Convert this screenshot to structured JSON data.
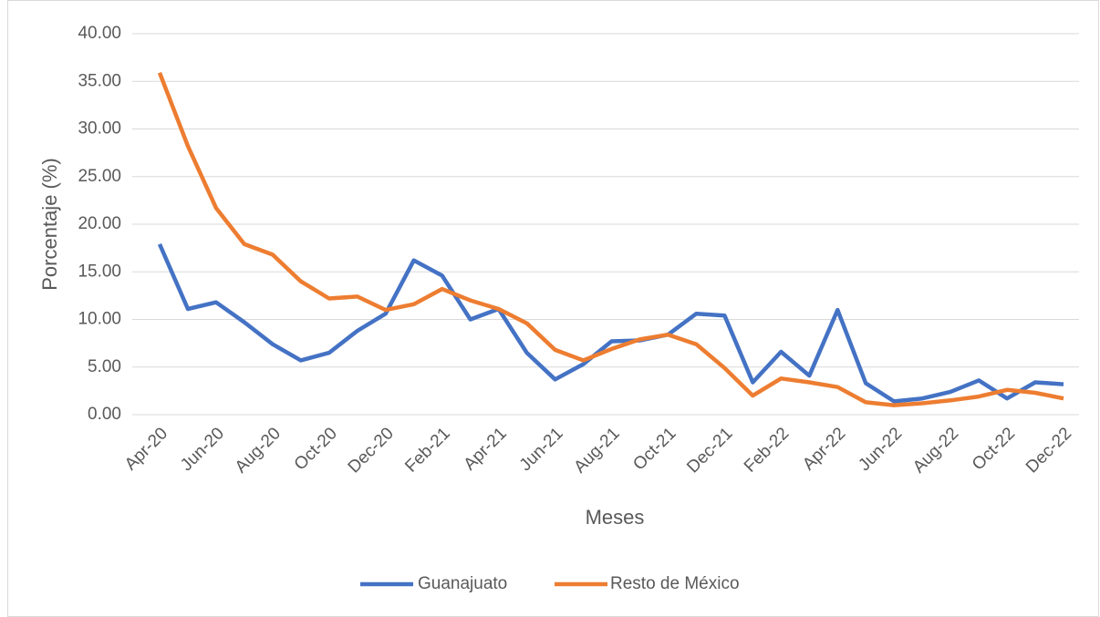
{
  "chart_data": {
    "type": "line",
    "x_label": "Meses",
    "y_label": "Porcentaje (%)",
    "categories": [
      "Apr-20",
      null,
      "Jun-20",
      null,
      "Aug-20",
      null,
      "Oct-20",
      null,
      "Dec-20",
      null,
      "Feb-21",
      null,
      "Apr-21",
      null,
      "Jun-21",
      null,
      "Aug-21",
      null,
      "Oct-21",
      null,
      "Dec-21",
      null,
      "Feb-22",
      null,
      "Apr-22",
      null,
      "Jun-22",
      null,
      "Aug-22",
      null,
      "Oct-22",
      null,
      "Dec-22"
    ],
    "series": [
      {
        "name": "Guanajuato",
        "color": "#4472c4",
        "values": [
          17.9,
          11.1,
          11.8,
          9.7,
          7.4,
          5.7,
          6.5,
          8.8,
          10.6,
          16.2,
          14.6,
          10.0,
          11.1,
          6.5,
          3.7,
          5.3,
          7.7,
          7.8,
          8.4,
          10.6,
          10.4,
          3.4,
          6.6,
          4.1,
          11.0,
          3.3,
          1.4,
          1.7,
          2.4,
          3.6,
          1.7,
          3.4,
          3.2
        ]
      },
      {
        "name": "Resto de México",
        "color": "#ed7d31",
        "values": [
          35.9,
          28.2,
          21.7,
          17.9,
          16.8,
          14.0,
          12.2,
          12.4,
          11.0,
          11.6,
          13.2,
          12.0,
          11.1,
          9.6,
          6.8,
          5.7,
          6.9,
          7.9,
          8.4,
          7.4,
          4.9,
          2.0,
          3.8,
          3.4,
          2.9,
          1.3,
          1.0,
          1.2,
          1.5,
          1.9,
          2.6,
          2.3,
          1.7
        ]
      }
    ],
    "ylim": [
      0,
      40
    ],
    "yticks": [
      {
        "value": 0,
        "label": "0.00"
      },
      {
        "value": 5,
        "label": "5.00"
      },
      {
        "value": 10,
        "label": "10.00"
      },
      {
        "value": 15,
        "label": "15.00"
      },
      {
        "value": 20,
        "label": "20.00"
      },
      {
        "value": 25,
        "label": "25.00"
      },
      {
        "value": 30,
        "label": "30.00"
      },
      {
        "value": 35,
        "label": "35.00"
      },
      {
        "value": 40,
        "label": "40.00"
      }
    ],
    "grid": true,
    "legend": "bottom"
  }
}
